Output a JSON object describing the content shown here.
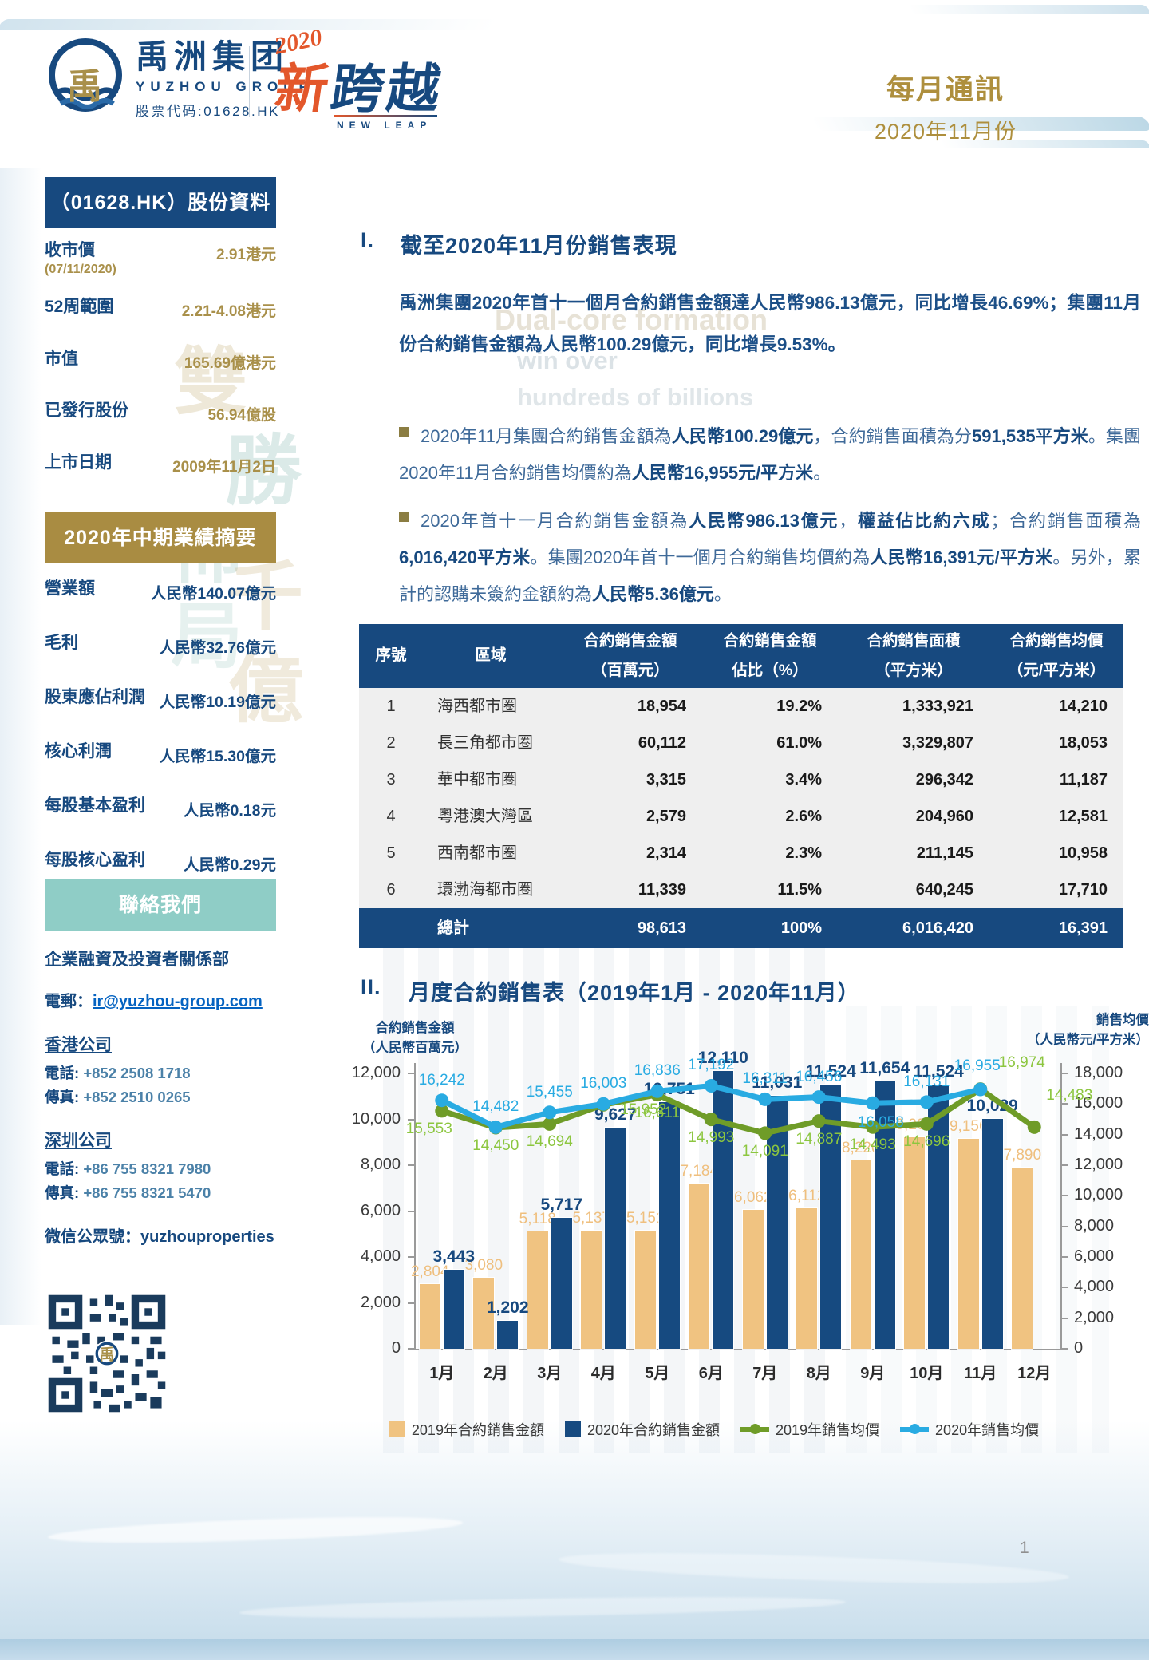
{
  "header": {
    "logo": {
      "symbol_char": "禹",
      "company_cn": "禹洲集团",
      "company_en": "YUZHOU GROUP",
      "stock_code_label": "股票代码:01628.HK"
    },
    "campaign": {
      "year": "2020",
      "title_char1": "新",
      "title_char23": "跨越",
      "subtitle": "NEW LEAP"
    },
    "newsletter": {
      "title": "每月通訊",
      "period": "2020年11月份"
    }
  },
  "sidebar": {
    "stock_info": {
      "title": "（01628.HK）股份資料",
      "rows": [
        {
          "label": "收市價",
          "sublabel": "(07/11/2020)",
          "value": "2.91港元"
        },
        {
          "label": "52周範圍",
          "sublabel": "",
          "value": "2.21-4.08港元"
        },
        {
          "label": "市值",
          "sublabel": "",
          "value": "165.69億港元"
        },
        {
          "label": "已發行股份",
          "sublabel": "",
          "value": "56.94億股"
        },
        {
          "label": "上市日期",
          "sublabel": "",
          "value": "2009年11月2日"
        }
      ]
    },
    "interim_results": {
      "title": "2020年中期業績摘要",
      "rows": [
        {
          "label": "營業額",
          "value": "人民幣140.07億元"
        },
        {
          "label": "毛利",
          "value": "人民幣32.76億元"
        },
        {
          "label": "股東應佔利潤",
          "value": "人民幣10.19億元"
        },
        {
          "label": "核心利潤",
          "value": "人民幣15.30億元"
        },
        {
          "label": "每股基本盈利",
          "value": "人民幣0.18元"
        },
        {
          "label": "每股核心盈利",
          "value": "人民幣0.29元"
        }
      ]
    },
    "contact": {
      "title": "聯絡我們",
      "department": "企業融資及投資者關係部",
      "email_label": "電郵：",
      "email": "ir@yuzhou-group.com",
      "hk_title": "香港公司",
      "hk_phone_label": "電話:",
      "hk_phone": "+852 2508 1718",
      "hk_fax_label": "傳真:",
      "hk_fax": "+852 2510 0265",
      "sz_title": "深圳公司",
      "sz_phone_label": "電話:",
      "sz_phone": "+86 755 8321 7980",
      "sz_fax_label": "傳真:",
      "sz_fax": "+86 755 8321 5470",
      "wechat_label": "微信公眾號：",
      "wechat": "yuzhouproperties"
    }
  },
  "section1": {
    "num": "I.",
    "heading": "截至2020年11月份銷售表現",
    "intro": "禹洲集團2020年首十一個月合約銷售金額達人民幣986.13億元，同比增長46.69%；集團11月份合約銷售金額為人民幣100.29億元，同比增長9.53%。",
    "bullets": [
      {
        "segments": [
          {
            "t": "2020年11月集團合約銷售金額為",
            "b": false
          },
          {
            "t": "人民幣100.29億元",
            "b": true
          },
          {
            "t": "，合約銷售面積為分",
            "b": false
          },
          {
            "t": "591,535平方米",
            "b": true
          },
          {
            "t": "。集團2020年11月合約銷售均價約為",
            "b": false
          },
          {
            "t": "人民幣16,955元/平方米",
            "b": true
          },
          {
            "t": "。",
            "b": false
          }
        ]
      },
      {
        "segments": [
          {
            "t": "2020年首十一月合約銷售金額為",
            "b": false
          },
          {
            "t": "人民幣986.13億元",
            "b": true
          },
          {
            "t": "，",
            "b": false
          },
          {
            "t": "權益佔比約六成",
            "b": true
          },
          {
            "t": "；合約銷售面積為",
            "b": false
          },
          {
            "t": "6,016,420平方米",
            "b": true
          },
          {
            "t": "。集團2020年首十一個月合約銷售均價約為",
            "b": false
          },
          {
            "t": "人民幣16,391元/平方米",
            "b": true
          },
          {
            "t": "。另外，累計的認購未簽約金額約為",
            "b": false
          },
          {
            "t": "人民幣5.36億元",
            "b": true
          },
          {
            "t": "。",
            "b": false
          }
        ]
      }
    ]
  },
  "table": {
    "headers": [
      {
        "l1": "序號",
        "l2": ""
      },
      {
        "l1": "區域",
        "l2": ""
      },
      {
        "l1": "合約銷售金額",
        "l2": "（百萬元）"
      },
      {
        "l1": "合約銷售金額",
        "l2": "佔比（%）"
      },
      {
        "l1": "合約銷售面積",
        "l2": "（平方米）"
      },
      {
        "l1": "合約銷售均價",
        "l2": "（元/平方米）"
      }
    ],
    "rows": [
      [
        "1",
        "海西都市圈",
        "18,954",
        "19.2%",
        "1,333,921",
        "14,210"
      ],
      [
        "2",
        "長三角都市圈",
        "60,112",
        "61.0%",
        "3,329,807",
        "18,053"
      ],
      [
        "3",
        "華中都市圈",
        "3,315",
        "3.4%",
        "296,342",
        "11,187"
      ],
      [
        "4",
        "粵港澳大灣區",
        "2,579",
        "2.6%",
        "204,960",
        "12,581"
      ],
      [
        "5",
        "西南都市圈",
        "2,314",
        "2.3%",
        "211,145",
        "10,958"
      ],
      [
        "6",
        "環渤海都市圈",
        "11,339",
        "11.5%",
        "640,245",
        "17,710"
      ]
    ],
    "total": [
      "",
      "總計",
      "98,613",
      "100%",
      "6,016,420",
      "16,391"
    ]
  },
  "section2": {
    "num": "II.",
    "heading": "月度合約銷售表（2019年1月 - 2020年11月）"
  },
  "chart_data": {
    "type": "bar+line",
    "title": "月度合約銷售表（2019年1月 - 2020年11月）",
    "categories": [
      "1月",
      "2月",
      "3月",
      "4月",
      "5月",
      "6月",
      "7月",
      "8月",
      "9月",
      "10月",
      "11月",
      "12月"
    ],
    "series": [
      {
        "name": "2019年合約銷售金額",
        "type": "bar",
        "color": "#F0C381",
        "values": [
          2804,
          3080,
          5118,
          5137,
          5151,
          7184,
          6062,
          6112,
          8220,
          9201,
          9156,
          7890
        ]
      },
      {
        "name": "2020年合約銷售金額",
        "type": "bar",
        "color": "#164A80",
        "values": [
          3443,
          1202,
          5717,
          9627,
          10751,
          12110,
          11031,
          11524,
          11654,
          11524,
          10029,
          null
        ]
      },
      {
        "name": "2019年銷售均價",
        "type": "line",
        "color": "#6F9C28",
        "label_color": "#8CC63F",
        "values": [
          15553,
          14450,
          14694,
          15952,
          16611,
          14993,
          14091,
          14887,
          14493,
          14696,
          16974,
          14483
        ]
      },
      {
        "name": "2020年銷售均價",
        "type": "line",
        "color": "#29ABE2",
        "label_color": "#29ABE2",
        "values": [
          16242,
          14482,
          15455,
          16003,
          16836,
          17192,
          16311,
          16456,
          16058,
          16131,
          16955,
          null
        ]
      }
    ],
    "left_axis": {
      "title_line1": "合約銷售金額",
      "title_line2": "（人民幣百萬元）",
      "min": 0,
      "max": 12000,
      "step": 2000
    },
    "right_axis": {
      "title_line1": "銷售均價",
      "title_line2": "（人民幣元/平方米）",
      "min": 0,
      "max": 18000,
      "step": 2000
    },
    "legend_position": "bottom",
    "grid": false
  },
  "background_watermark": {
    "en_line1": "Dual-core formation",
    "en_line2": "win over",
    "en_line3": "hundreds of billions",
    "cn_char1": "雙",
    "cn_char2": "勝",
    "cn_char3": "佈",
    "cn_char4": "局",
    "cn_char5": "千",
    "cn_char6": "億"
  },
  "footer": {
    "page_number": "1"
  },
  "colors": {
    "brand_blue": "#17497F",
    "gold": "#A98C42",
    "teal": "#8FCDC6",
    "bar_2019": "#F0C381",
    "bar_2020": "#164A80",
    "line_2019": "#6F9C28",
    "line_2020": "#29ABE2"
  }
}
